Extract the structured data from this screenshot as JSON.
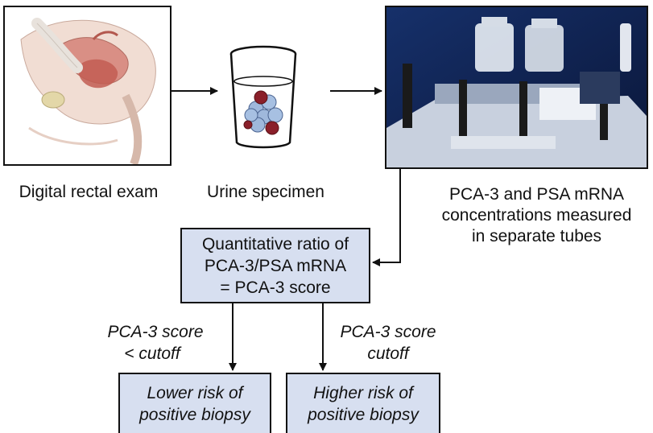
{
  "steps": {
    "exam": {
      "caption": "Digital rectal exam"
    },
    "urine": {
      "caption": "Urine specimen"
    },
    "lab": {
      "caption_lines": [
        "PCA-3 and PSA mRNA",
        "concentrations measured",
        "in separate tubes"
      ]
    }
  },
  "score_box": {
    "lines": [
      "Quantitative ratio of",
      "PCA-3/PSA mRNA",
      "= PCA-3 score"
    ]
  },
  "branches": {
    "low": {
      "condition_lines": [
        "PCA-3 score",
        "< cutoff"
      ],
      "result_lines": [
        "Lower risk of",
        "positive biopsy"
      ]
    },
    "high": {
      "condition_lines": [
        "PCA-3 score",
        "cutoff"
      ],
      "result_lines": [
        "Higher risk of",
        "positive biopsy"
      ]
    }
  },
  "colors": {
    "box_fill": "#d7dff0",
    "stroke": "#111111",
    "lab_photo_bg": "#0d1f4a"
  }
}
